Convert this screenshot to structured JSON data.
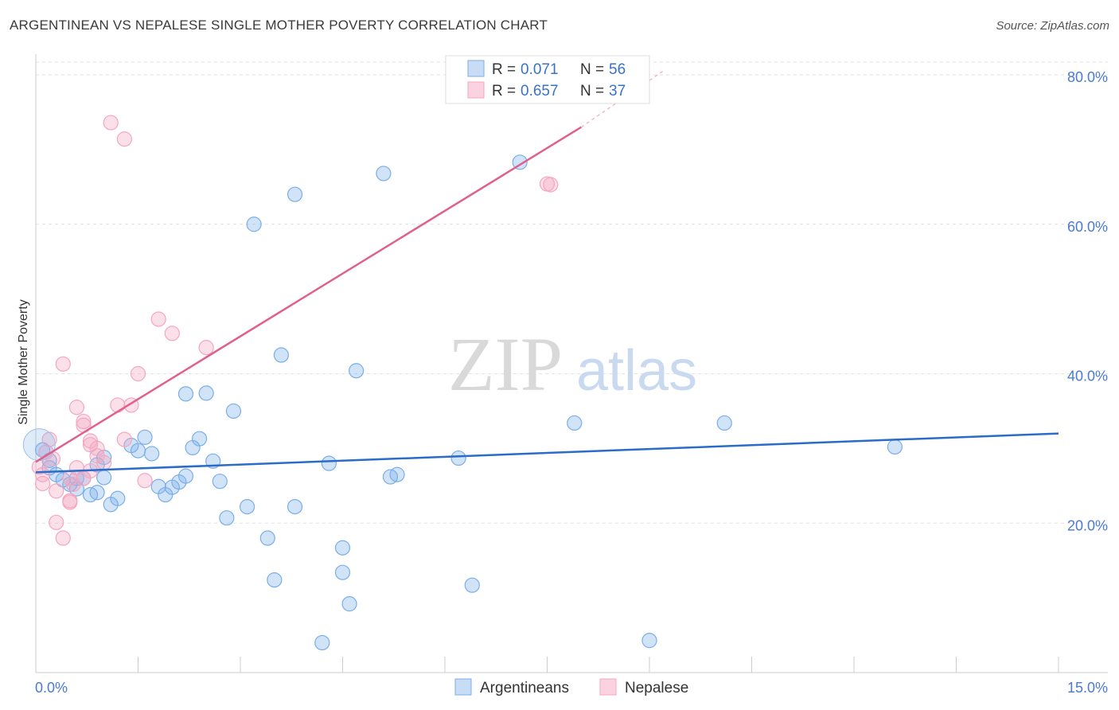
{
  "title": "ARGENTINEAN VS NEPALESE SINGLE MOTHER POVERTY CORRELATION CHART",
  "source": "Source: ZipAtlas.com",
  "watermark": {
    "zip": "ZIP",
    "atlas": "atlas"
  },
  "chart_data": {
    "type": "scatter",
    "ylabel": "Single Mother Poverty",
    "xlim": [
      0,
      15
    ],
    "ylim": [
      0,
      80
    ],
    "x_tick_labels": [
      "0.0%",
      "15.0%"
    ],
    "y_tick_labels": [
      "20.0%",
      "40.0%",
      "60.0%",
      "80.0%"
    ],
    "grid": true,
    "legend_top": [
      {
        "r_label": "R =",
        "r_value": "0.071",
        "n_label": "N =",
        "n_value": "56"
      },
      {
        "r_label": "R =",
        "r_value": "0.657",
        "n_label": "N =",
        "n_value": "37"
      }
    ],
    "series": [
      {
        "name": "Argentineans",
        "color": "#7aaee8",
        "line_color": "#2a6cc8",
        "trend": {
          "x": [
            0.0,
            15.0
          ],
          "y": [
            26.8,
            32.0
          ]
        },
        "points": [
          [
            0.1,
            29.8
          ],
          [
            0.2,
            28.4
          ],
          [
            0.2,
            27.4
          ],
          [
            0.3,
            26.5
          ],
          [
            0.4,
            25.8
          ],
          [
            0.5,
            25.2
          ],
          [
            0.6,
            24.6
          ],
          [
            0.7,
            26.0
          ],
          [
            0.8,
            23.8
          ],
          [
            0.9,
            24.1
          ],
          [
            1.0,
            28.8
          ],
          [
            1.1,
            22.5
          ],
          [
            1.2,
            23.3
          ],
          [
            1.4,
            30.4
          ],
          [
            1.5,
            29.7
          ],
          [
            1.6,
            31.5
          ],
          [
            1.7,
            29.3
          ],
          [
            1.8,
            24.9
          ],
          [
            1.9,
            23.8
          ],
          [
            2.0,
            24.8
          ],
          [
            2.1,
            25.5
          ],
          [
            2.2,
            26.3
          ],
          [
            2.2,
            37.3
          ],
          [
            2.3,
            30.1
          ],
          [
            2.4,
            31.3
          ],
          [
            2.5,
            37.4
          ],
          [
            2.6,
            28.3
          ],
          [
            2.7,
            25.6
          ],
          [
            2.8,
            20.7
          ],
          [
            2.9,
            35.0
          ],
          [
            3.1,
            22.2
          ],
          [
            3.2,
            60.0
          ],
          [
            3.4,
            18.0
          ],
          [
            3.5,
            12.4
          ],
          [
            3.6,
            42.5
          ],
          [
            3.8,
            22.2
          ],
          [
            3.8,
            64.0
          ],
          [
            4.2,
            4.0
          ],
          [
            4.3,
            28.0
          ],
          [
            4.5,
            13.4
          ],
          [
            4.5,
            16.7
          ],
          [
            4.6,
            9.2
          ],
          [
            4.7,
            40.4
          ],
          [
            5.1,
            66.8
          ],
          [
            5.2,
            26.2
          ],
          [
            5.3,
            26.5
          ],
          [
            6.2,
            28.7
          ],
          [
            6.4,
            11.7
          ],
          [
            7.1,
            68.3
          ],
          [
            7.9,
            33.4
          ],
          [
            9.0,
            4.3
          ],
          [
            10.1,
            33.4
          ],
          [
            12.6,
            30.2
          ],
          [
            0.6,
            26.0
          ],
          [
            0.9,
            27.8
          ],
          [
            1.0,
            26.1
          ]
        ]
      },
      {
        "name": "Nepalese",
        "color": "#f4a6c0",
        "line_color": "#e0608c",
        "trend": {
          "x": [
            0.0,
            8.0
          ],
          "y": [
            28.2,
            73.0
          ]
        },
        "trend_ext": {
          "x": [
            8.0,
            9.2
          ],
          "y": [
            73.0,
            80.5
          ]
        },
        "points": [
          [
            0.05,
            27.5
          ],
          [
            0.1,
            26.5
          ],
          [
            0.1,
            25.3
          ],
          [
            0.2,
            31.2
          ],
          [
            0.25,
            28.6
          ],
          [
            0.3,
            24.3
          ],
          [
            0.3,
            20.1
          ],
          [
            0.4,
            18.0
          ],
          [
            0.4,
            41.3
          ],
          [
            0.5,
            26.0
          ],
          [
            0.5,
            23.0
          ],
          [
            0.6,
            35.5
          ],
          [
            0.6,
            27.4
          ],
          [
            0.7,
            26.0
          ],
          [
            0.7,
            33.1
          ],
          [
            0.7,
            33.6
          ],
          [
            0.8,
            31.0
          ],
          [
            0.8,
            30.5
          ],
          [
            0.8,
            27.0
          ],
          [
            0.9,
            30.0
          ],
          [
            0.9,
            29.0
          ],
          [
            1.0,
            28.1
          ],
          [
            1.1,
            73.6
          ],
          [
            1.2,
            35.8
          ],
          [
            1.3,
            31.2
          ],
          [
            1.3,
            71.4
          ],
          [
            1.4,
            35.8
          ],
          [
            1.5,
            40.0
          ],
          [
            1.6,
            25.7
          ],
          [
            1.8,
            47.3
          ],
          [
            2.0,
            45.4
          ],
          [
            2.5,
            43.5
          ],
          [
            0.5,
            22.8
          ],
          [
            0.55,
            25.2
          ],
          [
            7.5,
            65.4
          ],
          [
            7.55,
            65.3
          ],
          [
            0.15,
            29.5
          ]
        ]
      }
    ]
  }
}
